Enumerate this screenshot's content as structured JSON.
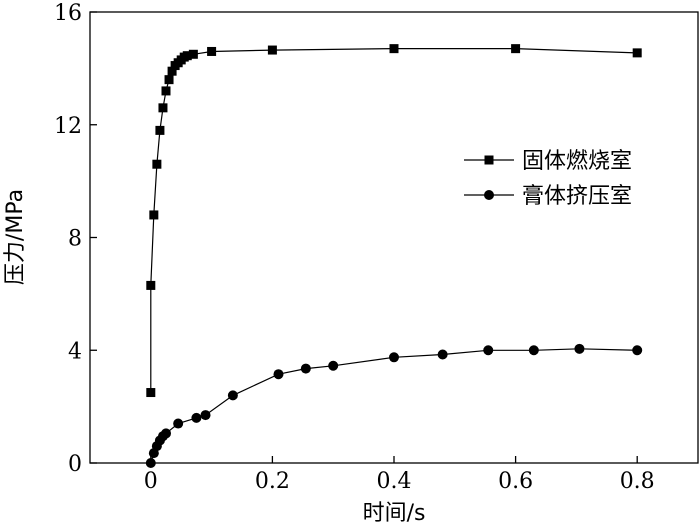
{
  "chart_data": {
    "type": "line",
    "xlabel": "时间/s",
    "ylabel": "压力/MPa",
    "xlim": [
      -0.1,
      0.9
    ],
    "ylim": [
      0,
      16
    ],
    "xticks": [
      0,
      0.2,
      0.4,
      0.6,
      0.8
    ],
    "xtick_labels": [
      "0",
      "0.2",
      "0.4",
      "0.6",
      "0.8"
    ],
    "yticks": [
      0,
      4,
      8,
      12,
      16
    ],
    "ytick_labels": [
      "0",
      "4",
      "8",
      "12",
      "16"
    ],
    "grid": false,
    "legend_position": "right",
    "series": [
      {
        "name": "固体燃烧室",
        "marker": "square",
        "color": "#000000",
        "x": [
          0.0,
          0.0,
          0.005,
          0.01,
          0.015,
          0.02,
          0.025,
          0.03,
          0.035,
          0.04,
          0.045,
          0.05,
          0.055,
          0.06,
          0.07,
          0.1,
          0.2,
          0.4,
          0.6,
          0.8
        ],
        "y": [
          2.5,
          6.3,
          8.8,
          10.6,
          11.8,
          12.6,
          13.2,
          13.6,
          13.9,
          14.1,
          14.2,
          14.3,
          14.4,
          14.45,
          14.5,
          14.6,
          14.65,
          14.7,
          14.7,
          14.55
        ]
      },
      {
        "name": "膏体挤压室",
        "marker": "circle",
        "color": "#000000",
        "x": [
          0.0,
          0.005,
          0.01,
          0.015,
          0.02,
          0.025,
          0.045,
          0.075,
          0.09,
          0.135,
          0.21,
          0.255,
          0.3,
          0.4,
          0.48,
          0.555,
          0.63,
          0.705,
          0.8
        ],
        "y": [
          0.0,
          0.35,
          0.6,
          0.8,
          0.95,
          1.05,
          1.4,
          1.6,
          1.7,
          2.4,
          3.15,
          3.35,
          3.45,
          3.75,
          3.85,
          4.0,
          4.0,
          4.05,
          4.0
        ]
      }
    ]
  }
}
